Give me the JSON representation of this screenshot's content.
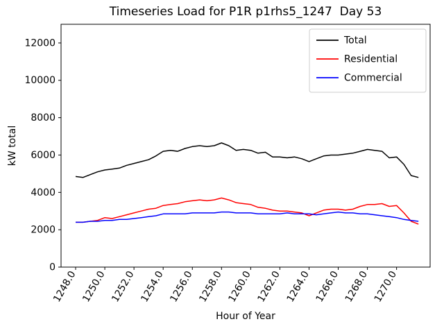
{
  "chart_data": {
    "type": "line",
    "title": "Timeseries Load for P1R p1rhs5_1247  Day 53",
    "xlabel": "Hour of Year",
    "ylabel": "kW total",
    "xlim": [
      1247.0,
      1272.3
    ],
    "ylim": [
      0,
      13000
    ],
    "xticks": [
      1248,
      1250,
      1252,
      1254,
      1256,
      1258,
      1260,
      1262,
      1264,
      1266,
      1268,
      1270
    ],
    "xtick_labels": [
      "1248.0",
      "1250.0",
      "1252.0",
      "1254.0",
      "1256.0",
      "1258.0",
      "1260.0",
      "1262.0",
      "1264.0",
      "1266.0",
      "1268.0",
      "1270.0"
    ],
    "yticks": [
      0,
      2000,
      4000,
      6000,
      8000,
      10000,
      12000
    ],
    "grid": false,
    "legend_position": "upper right",
    "x": [
      1248.0,
      1248.5,
      1249.0,
      1249.5,
      1250.0,
      1250.5,
      1251.0,
      1251.5,
      1252.0,
      1252.5,
      1253.0,
      1253.5,
      1254.0,
      1254.5,
      1255.0,
      1255.5,
      1256.0,
      1256.5,
      1257.0,
      1257.5,
      1258.0,
      1258.5,
      1259.0,
      1259.5,
      1260.0,
      1260.5,
      1261.0,
      1261.5,
      1262.0,
      1262.5,
      1263.0,
      1263.5,
      1264.0,
      1264.5,
      1265.0,
      1265.5,
      1266.0,
      1266.5,
      1267.0,
      1267.5,
      1268.0,
      1268.5,
      1269.0,
      1269.5,
      1270.0,
      1270.5,
      1271.0,
      1271.5
    ],
    "series": [
      {
        "name": "Total",
        "color": "#000000",
        "values": [
          4850,
          4800,
          4950,
          5100,
          5200,
          5250,
          5300,
          5450,
          5550,
          5650,
          5750,
          5950,
          6200,
          6250,
          6200,
          6350,
          6450,
          6500,
          6450,
          6500,
          6650,
          6500,
          6250,
          6300,
          6250,
          6100,
          6150,
          5900,
          5900,
          5850,
          5900,
          5800,
          5650,
          5800,
          5950,
          6000,
          6000,
          6050,
          6100,
          6200,
          6300,
          6250,
          6200,
          5850,
          5900,
          5500,
          4900,
          4800
        ]
      },
      {
        "name": "Residential",
        "color": "#ff0000",
        "values": [
          2400,
          2400,
          2450,
          2500,
          2650,
          2600,
          2700,
          2800,
          2900,
          3000,
          3100,
          3150,
          3300,
          3350,
          3400,
          3500,
          3550,
          3600,
          3550,
          3600,
          3700,
          3600,
          3450,
          3400,
          3350,
          3200,
          3150,
          3050,
          3000,
          3000,
          2950,
          2900,
          2750,
          2900,
          3050,
          3100,
          3100,
          3050,
          3100,
          3250,
          3350,
          3350,
          3400,
          3250,
          3300,
          2900,
          2450,
          2300
        ]
      },
      {
        "name": "Commercial",
        "color": "#0000ff",
        "values": [
          2400,
          2400,
          2450,
          2450,
          2500,
          2500,
          2550,
          2550,
          2600,
          2650,
          2700,
          2750,
          2850,
          2850,
          2850,
          2850,
          2900,
          2900,
          2900,
          2900,
          2950,
          2950,
          2900,
          2900,
          2900,
          2850,
          2850,
          2850,
          2850,
          2900,
          2850,
          2850,
          2850,
          2800,
          2850,
          2900,
          2950,
          2900,
          2900,
          2850,
          2850,
          2800,
          2750,
          2700,
          2650,
          2550,
          2500,
          2450
        ]
      }
    ]
  }
}
